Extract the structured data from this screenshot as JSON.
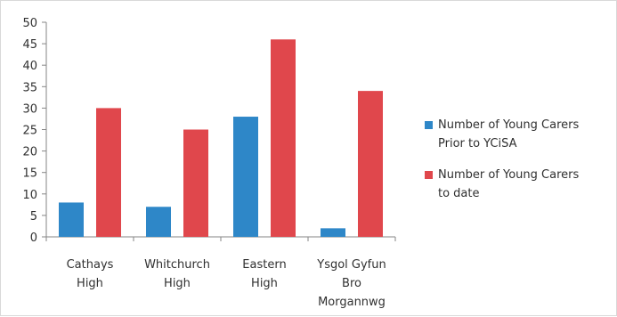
{
  "chart_data": {
    "type": "bar",
    "categories": [
      [
        "Cathays",
        "High"
      ],
      [
        "Whitchurch",
        "High"
      ],
      [
        "Eastern",
        "High"
      ],
      [
        "Ysgol Gyfun",
        "Bro",
        "Morgannwg"
      ]
    ],
    "series": [
      {
        "name": [
          "Number of Young Carers",
          "Prior to YCiSA"
        ],
        "color": "#2e87c8",
        "values": [
          8,
          7,
          28,
          2
        ]
      },
      {
        "name": [
          "Number of Young Carers",
          "to date"
        ],
        "color": "#e0474c",
        "values": [
          30,
          25,
          46,
          34
        ]
      }
    ],
    "title": "",
    "xlabel": "",
    "ylabel": "",
    "ylim": [
      0,
      50
    ],
    "yticks": [
      0,
      5,
      10,
      15,
      20,
      25,
      30,
      35,
      40,
      45,
      50
    ],
    "grid": false,
    "legend_position": "right"
  }
}
